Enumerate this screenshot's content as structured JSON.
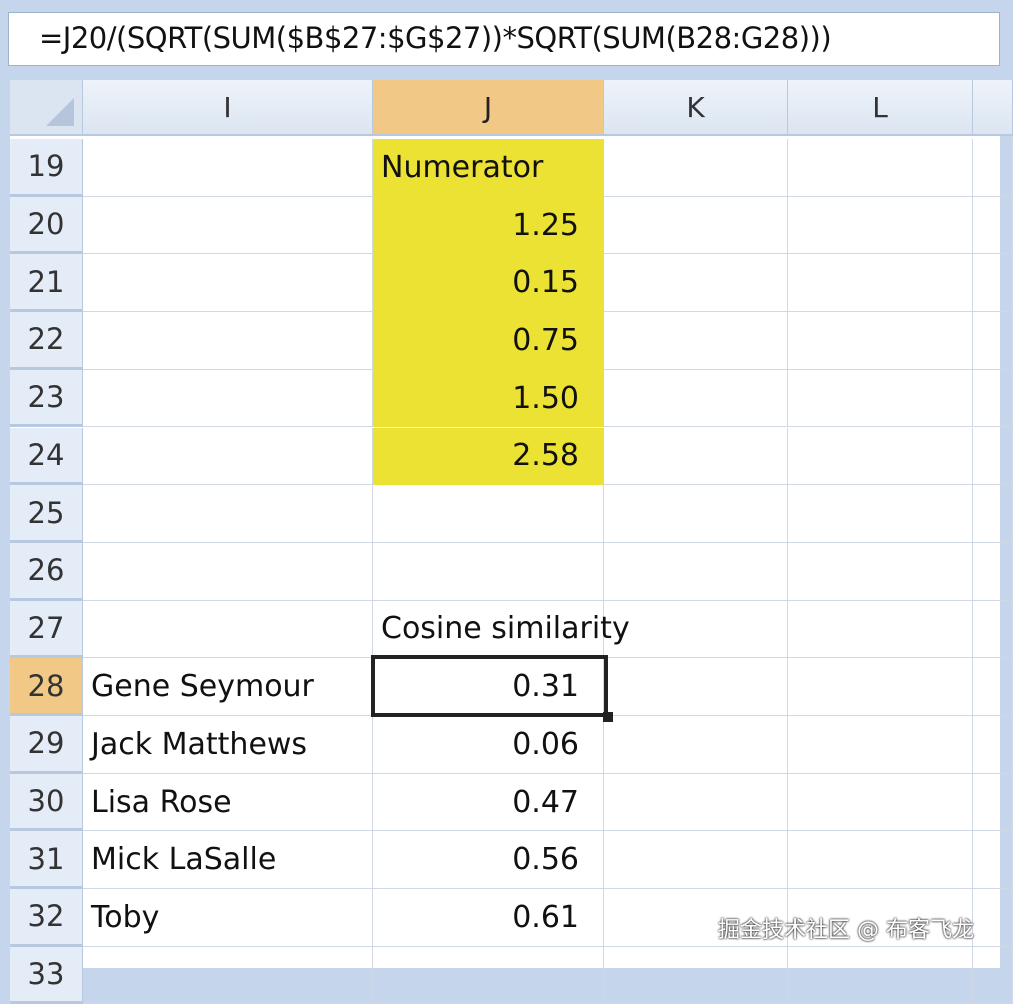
{
  "formula_bar": {
    "value": "=J20/(SQRT(SUM($B$27:$G$27))*SQRT(SUM(B28:G28)))"
  },
  "columns": [
    "I",
    "J",
    "K",
    "L"
  ],
  "selected_cell": "J28",
  "colors": {
    "highlight_fill": "#ece233",
    "selected_header": "#f1c885"
  },
  "rows": [
    {
      "num": "19",
      "I": "",
      "J": "Numerator",
      "J_align": "left",
      "yellow": true
    },
    {
      "num": "20",
      "I": "",
      "J": "1.25",
      "yellow": true
    },
    {
      "num": "21",
      "I": "",
      "J": "0.15",
      "yellow": true
    },
    {
      "num": "22",
      "I": "",
      "J": "0.75",
      "yellow": true
    },
    {
      "num": "23",
      "I": "",
      "J": "1.50",
      "yellow": true
    },
    {
      "num": "24",
      "I": "",
      "J": "2.58",
      "yellow": true
    },
    {
      "num": "25",
      "I": "",
      "J": ""
    },
    {
      "num": "26",
      "I": "",
      "J": ""
    },
    {
      "num": "27",
      "I": "",
      "J": "Cosine similarity",
      "J_align": "left"
    },
    {
      "num": "28",
      "I": "Gene Seymour",
      "J": "0.31",
      "selected": true
    },
    {
      "num": "29",
      "I": "Jack Matthews",
      "J": "0.06"
    },
    {
      "num": "30",
      "I": "Lisa Rose",
      "J": "0.47"
    },
    {
      "num": "31",
      "I": "Mick LaSalle",
      "J": "0.56"
    },
    {
      "num": "32",
      "I": "Toby",
      "J": "0.61"
    },
    {
      "num": "33",
      "I": "",
      "J": ""
    }
  ],
  "watermark": "掘金技术社区 @ 布客飞龙"
}
